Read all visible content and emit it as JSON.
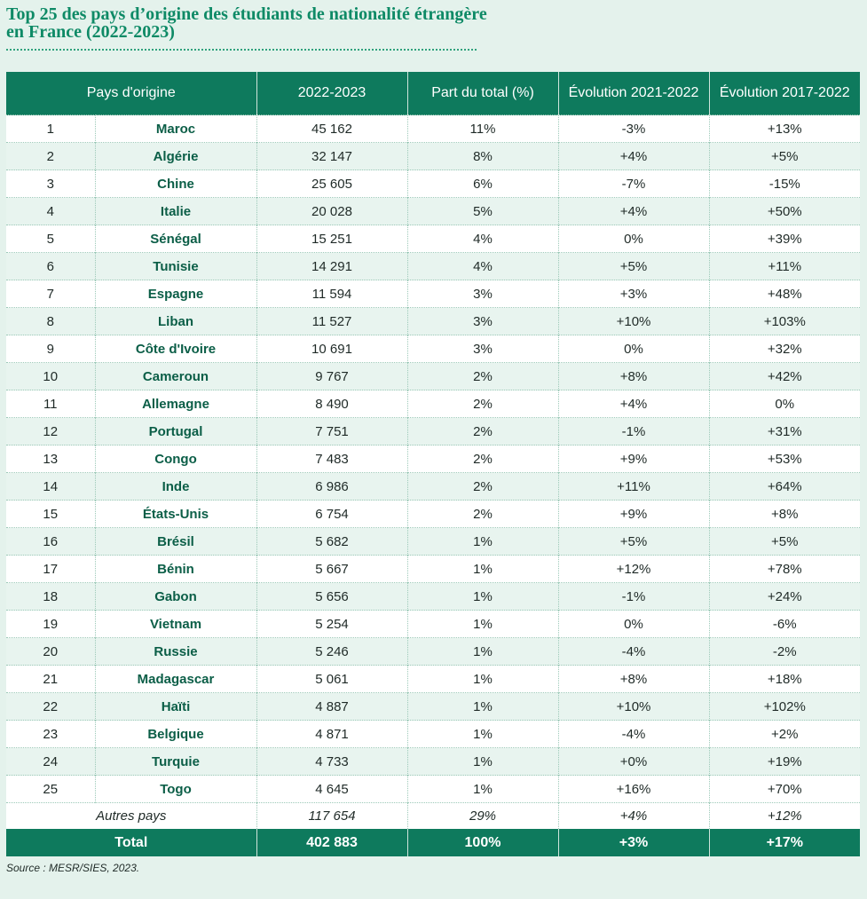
{
  "title": "Top 25 des pays d’origine des étudiants de nationalité étrangère en France (2022-2023)",
  "headers": [
    "Pays d'origine",
    "2022-2023",
    "Part du total (%)",
    "Évolution 2021-2022",
    "Évolution 2017-2022"
  ],
  "rows": [
    {
      "rank": "1",
      "country": "Maroc",
      "count": "45 162",
      "share": "11%",
      "evo_2021_2022": "-3%",
      "evo_2017_2022": "+13%"
    },
    {
      "rank": "2",
      "country": "Algérie",
      "count": "32 147",
      "share": "8%",
      "evo_2021_2022": "+4%",
      "evo_2017_2022": "+5%"
    },
    {
      "rank": "3",
      "country": "Chine",
      "count": "25 605",
      "share": "6%",
      "evo_2021_2022": "-7%",
      "evo_2017_2022": "-15%"
    },
    {
      "rank": "4",
      "country": "Italie",
      "count": "20 028",
      "share": "5%",
      "evo_2021_2022": "+4%",
      "evo_2017_2022": "+50%"
    },
    {
      "rank": "5",
      "country": "Sénégal",
      "count": "15 251",
      "share": "4%",
      "evo_2021_2022": "0%",
      "evo_2017_2022": "+39%"
    },
    {
      "rank": "6",
      "country": "Tunisie",
      "count": "14 291",
      "share": "4%",
      "evo_2021_2022": "+5%",
      "evo_2017_2022": "+11%"
    },
    {
      "rank": "7",
      "country": "Espagne",
      "count": "11 594",
      "share": "3%",
      "evo_2021_2022": "+3%",
      "evo_2017_2022": "+48%"
    },
    {
      "rank": "8",
      "country": "Liban",
      "count": "11 527",
      "share": "3%",
      "evo_2021_2022": "+10%",
      "evo_2017_2022": "+103%"
    },
    {
      "rank": "9",
      "country": "Côte d'Ivoire",
      "count": "10 691",
      "share": "3%",
      "evo_2021_2022": "0%",
      "evo_2017_2022": "+32%"
    },
    {
      "rank": "10",
      "country": "Cameroun",
      "count": "9 767",
      "share": "2%",
      "evo_2021_2022": "+8%",
      "evo_2017_2022": "+42%"
    },
    {
      "rank": "11",
      "country": "Allemagne",
      "count": "8 490",
      "share": "2%",
      "evo_2021_2022": "+4%",
      "evo_2017_2022": "0%"
    },
    {
      "rank": "12",
      "country": "Portugal",
      "count": "7 751",
      "share": "2%",
      "evo_2021_2022": "-1%",
      "evo_2017_2022": "+31%"
    },
    {
      "rank": "13",
      "country": "Congo",
      "count": "7 483",
      "share": "2%",
      "evo_2021_2022": "+9%",
      "evo_2017_2022": "+53%"
    },
    {
      "rank": "14",
      "country": "Inde",
      "count": "6 986",
      "share": "2%",
      "evo_2021_2022": "+11%",
      "evo_2017_2022": "+64%"
    },
    {
      "rank": "15",
      "country": "États-Unis",
      "count": "6 754",
      "share": "2%",
      "evo_2021_2022": "+9%",
      "evo_2017_2022": "+8%"
    },
    {
      "rank": "16",
      "country": "Brésil",
      "count": "5 682",
      "share": "1%",
      "evo_2021_2022": "+5%",
      "evo_2017_2022": "+5%"
    },
    {
      "rank": "17",
      "country": "Bénin",
      "count": "5 667",
      "share": "1%",
      "evo_2021_2022": "+12%",
      "evo_2017_2022": "+78%"
    },
    {
      "rank": "18",
      "country": "Gabon",
      "count": "5 656",
      "share": "1%",
      "evo_2021_2022": "-1%",
      "evo_2017_2022": "+24%"
    },
    {
      "rank": "19",
      "country": "Vietnam",
      "count": "5 254",
      "share": "1%",
      "evo_2021_2022": "0%",
      "evo_2017_2022": "-6%"
    },
    {
      "rank": "20",
      "country": "Russie",
      "count": "5 246",
      "share": "1%",
      "evo_2021_2022": "-4%",
      "evo_2017_2022": "-2%"
    },
    {
      "rank": "21",
      "country": "Madagascar",
      "count": "5 061",
      "share": "1%",
      "evo_2021_2022": "+8%",
      "evo_2017_2022": "+18%"
    },
    {
      "rank": "22",
      "country": "Haïti",
      "count": "4 887",
      "share": "1%",
      "evo_2021_2022": "+10%",
      "evo_2017_2022": "+102%"
    },
    {
      "rank": "23",
      "country": "Belgique",
      "count": "4 871",
      "share": "1%",
      "evo_2021_2022": "-4%",
      "evo_2017_2022": "+2%"
    },
    {
      "rank": "24",
      "country": "Turquie",
      "count": "4 733",
      "share": "1%",
      "evo_2021_2022": "+0%",
      "evo_2017_2022": "+19%"
    },
    {
      "rank": "25",
      "country": "Togo",
      "count": "4 645",
      "share": "1%",
      "evo_2021_2022": "+16%",
      "evo_2017_2022": "+70%"
    }
  ],
  "autres": {
    "label": "Autres pays",
    "count": "117 654",
    "share": "29%",
    "evo_2021_2022": "+4%",
    "evo_2017_2022": "+12%"
  },
  "total": {
    "label": "Total",
    "count": "402 883",
    "share": "100%",
    "evo_2021_2022": "+3%",
    "evo_2017_2022": "+17%"
  },
  "source": "Source : MESR/SIES, 2023."
}
